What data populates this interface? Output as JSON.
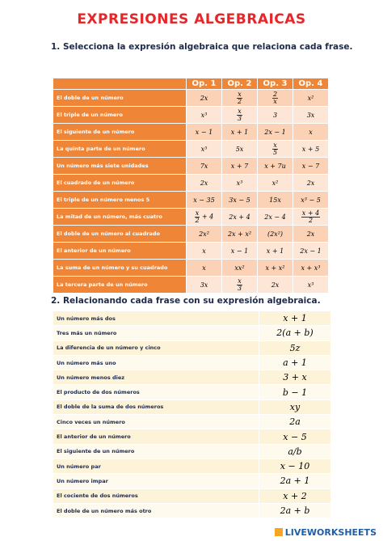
{
  "header": {
    "title": "EXPRESIONES ALGEBRAICAS"
  },
  "section1": {
    "heading": "1. Selecciona la expresión algebraica que relaciona cada frase.",
    "columns": [
      "Op. 1",
      "Op. 2",
      "Op. 3",
      "Op. 4"
    ],
    "rows": [
      {
        "phrase": "El doble de un número",
        "options": [
          "2x",
          {
            "num": "x",
            "den": "2"
          },
          {
            "num": "2",
            "den": "x"
          },
          "x²"
        ]
      },
      {
        "phrase": "El triple de un número",
        "options": [
          "x³",
          {
            "num": "x",
            "den": "3"
          },
          "3",
          "3x"
        ]
      },
      {
        "phrase": "El siguiente de un número",
        "options": [
          "x − 1",
          "x + 1",
          "2x − 1",
          "x"
        ]
      },
      {
        "phrase": "La quinta parte de un número",
        "options": [
          "x⁵",
          "5x",
          {
            "num": "x",
            "den": "5"
          },
          "x + 5"
        ]
      },
      {
        "phrase": "Un número más siete unidades",
        "options": [
          "7x",
          "x + 7",
          "x + 7u",
          "x − 7"
        ]
      },
      {
        "phrase": "El cuadrado de un número",
        "options": [
          "2x",
          "x³",
          "x²",
          "2x"
        ]
      },
      {
        "phrase": "El triple de un número menos 5",
        "options": [
          "x − 35",
          "3x − 5",
          "15x",
          "x³ − 5"
        ]
      },
      {
        "phrase": "La mitad de un número, más cuatro",
        "options": [
          {
            "num": "x",
            "den": "2",
            "suffix": "+ 4"
          },
          "2x + 4",
          "2x − 4",
          {
            "num": "x + 4",
            "den": "2"
          }
        ]
      },
      {
        "phrase": "El doble de un número al cuadrado",
        "options": [
          "2x²",
          "2x + x²",
          "(2x²)",
          "2x"
        ]
      },
      {
        "phrase": "El anterior de un número",
        "options": [
          "x",
          "x − 1",
          "x + 1",
          "2x − 1"
        ]
      },
      {
        "phrase": "La suma de un número y su cuadrado",
        "options": [
          "x",
          "xx²",
          "x + x²",
          "x + x³"
        ]
      },
      {
        "phrase": "La tercera parte de un número",
        "options": [
          "3x",
          {
            "num": "x",
            "den": "3"
          },
          "2x",
          "x³"
        ]
      }
    ]
  },
  "section2": {
    "heading": "2. Relacionando cada frase con su expresión algebraica.",
    "phrases": [
      "Un número más dos",
      "Tres más un número",
      "La diferencia de un número y cinco",
      "Un número más uno",
      "Un número menos diez",
      "El producto de dos números",
      "El doble de la suma de dos números",
      "Cinco veces un número",
      "El anterior de un número",
      "El siguiente de un número",
      "Un número par",
      "Un número impar",
      "El cociente de dos números",
      "El doble de un número más otro"
    ],
    "expressions": [
      "x + 1",
      "2(a + b)",
      "5z",
      "a + 1",
      "3 + x",
      "b − 1",
      "xy",
      "2a",
      "x − 5",
      "a/b",
      "x − 10",
      "2a + 1",
      "x + 2",
      "2a + b"
    ]
  },
  "footer": {
    "logo": "LIVEWORKSHEETS"
  }
}
